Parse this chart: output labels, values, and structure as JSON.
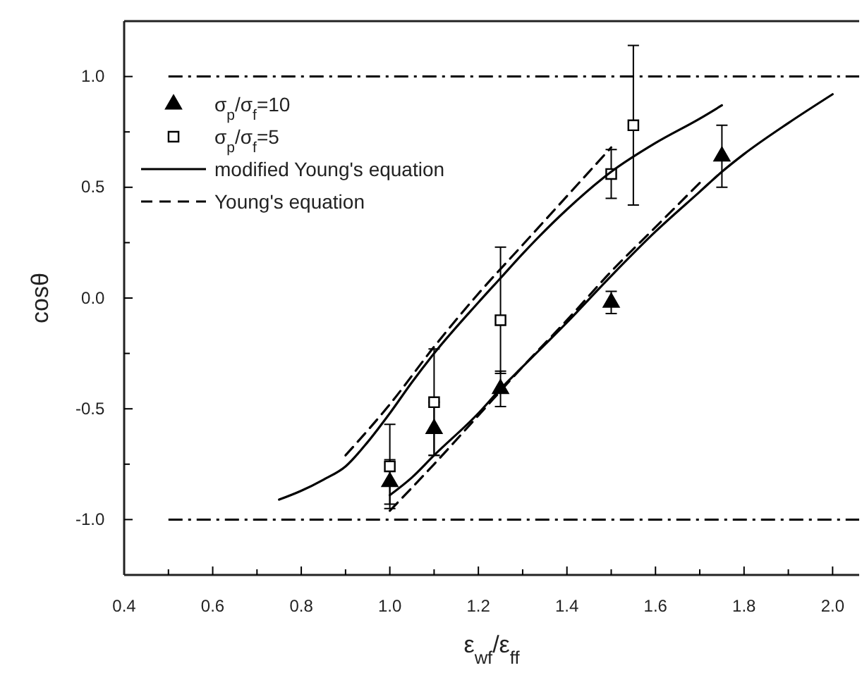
{
  "chart_data": {
    "type": "scatter",
    "xlabel": "ε$_{wf}$/ε$_{ff}$",
    "ylabel": "cosθ",
    "xlim": [
      0.4,
      2.06
    ],
    "ylim": [
      -1.25,
      1.25
    ],
    "xticks": [
      0.4,
      {
        "value": 0.5,
        "label": null
      },
      0.6,
      {
        "value": 0.7,
        "label": null
      },
      0.8,
      {
        "value": 0.9,
        "label": null
      },
      {
        "value": 1.0,
        "label": "1.0"
      },
      {
        "value": 1.1,
        "label": null
      },
      1.2,
      {
        "value": 1.3,
        "label": null
      },
      1.4,
      {
        "value": 1.5,
        "label": null
      },
      1.6,
      {
        "value": 1.7,
        "label": null
      },
      1.8,
      {
        "value": 1.9,
        "label": null
      },
      {
        "value": 2.0,
        "label": "2.0"
      }
    ],
    "yticks": [
      {
        "value": -1.0,
        "label": "-1.0"
      },
      {
        "value": -0.75,
        "label": null
      },
      -0.5,
      {
        "value": -0.25,
        "label": null
      },
      {
        "value": 0.0,
        "label": "0.0"
      },
      {
        "value": 0.25,
        "label": null
      },
      0.5,
      {
        "value": 0.75,
        "label": null
      },
      {
        "value": 1.0,
        "label": "1.0"
      }
    ],
    "legend": "top left",
    "ref_lines": [
      {
        "axis": "y",
        "value": 1.0,
        "color": "#000000",
        "line_style": "dashdot"
      },
      {
        "axis": "y",
        "value": -1.0,
        "color": "#000000",
        "line_style": "dashdot"
      }
    ],
    "series": [
      {
        "name": "σ$_{p}$/σ$_{f}$=10",
        "marker": "triangle",
        "color": "#000000",
        "x": [
          1.0,
          1.1,
          1.25,
          1.5,
          1.75
        ],
        "values": [
          -0.83,
          -0.59,
          -0.41,
          -0.02,
          0.64
        ],
        "errors": [
          0.1,
          0.12,
          0.08,
          0.05,
          0.14
        ]
      },
      {
        "name": "σ$_{p}$/σ$_{f}$=5",
        "marker": "square",
        "color": "#000000",
        "x": [
          1.0,
          1.1,
          1.25,
          1.5,
          1.55
        ],
        "values": [
          -0.76,
          -0.47,
          -0.1,
          0.56,
          0.78
        ],
        "errors": [
          0.19,
          0.24,
          [
            -0.34,
            0.23
          ],
          0.11,
          0.36
        ]
      },
      {
        "name": "modified Young's equation",
        "type": "line",
        "line_style": "solid",
        "color": "#000000",
        "x": [
          0.75,
          0.8,
          0.85,
          0.9,
          0.95,
          1.0,
          1.05,
          1.1,
          1.2,
          1.25,
          1.3,
          1.4,
          1.5,
          1.6,
          1.7,
          1.75
        ],
        "values": [
          -0.91,
          -0.87,
          -0.82,
          -0.76,
          -0.65,
          -0.52,
          -0.38,
          -0.25,
          -0.02,
          0.09,
          0.2,
          0.4,
          0.57,
          0.7,
          0.81,
          0.87
        ]
      },
      {
        "name": "Young's equation",
        "type": "line",
        "line_style": "dashed",
        "color": "#000000",
        "x": [
          0.9,
          1.0,
          1.1,
          1.2,
          1.3,
          1.4,
          1.5
        ],
        "values": [
          -0.71,
          -0.48,
          -0.22,
          0.02,
          0.24,
          0.46,
          0.68
        ]
      },
      {
        "type": "line",
        "line_style": "solid",
        "color": "#000000",
        "x": [
          1.0,
          1.05,
          1.1,
          1.2,
          1.25,
          1.3,
          1.4,
          1.5,
          1.6,
          1.7,
          1.75,
          1.8,
          1.9,
          2.0
        ],
        "values": [
          -0.89,
          -0.81,
          -0.71,
          -0.52,
          -0.41,
          -0.31,
          -0.11,
          0.1,
          0.3,
          0.48,
          0.57,
          0.65,
          0.79,
          0.92
        ]
      },
      {
        "type": "line",
        "line_style": "dashed",
        "color": "#000000",
        "x": [
          1.0,
          1.1,
          1.2,
          1.3,
          1.4,
          1.5,
          1.6,
          1.7
        ],
        "values": [
          -0.96,
          -0.75,
          -0.53,
          -0.31,
          -0.1,
          0.12,
          0.32,
          0.52
        ]
      }
    ]
  }
}
